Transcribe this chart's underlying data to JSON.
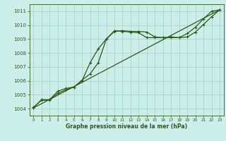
{
  "xlabel": "Graphe pression niveau de la mer (hPa)",
  "ylim": [
    1003.5,
    1011.5
  ],
  "xlim": [
    -0.5,
    23.5
  ],
  "yticks": [
    1004,
    1005,
    1006,
    1007,
    1008,
    1009,
    1010,
    1011
  ],
  "xticks": [
    0,
    1,
    2,
    3,
    4,
    5,
    6,
    7,
    8,
    9,
    10,
    11,
    12,
    13,
    14,
    15,
    16,
    17,
    18,
    19,
    20,
    21,
    22,
    23
  ],
  "bg_color": "#cceee8",
  "grid_color": "#aad4ce",
  "line_color": "#2d5a1b",
  "line1_x": [
    0,
    1,
    2,
    3,
    4,
    5,
    6,
    7,
    8,
    9,
    10,
    11,
    12,
    13,
    14,
    15,
    16,
    17,
    18,
    19,
    20,
    21,
    22,
    23
  ],
  "line1_y": [
    1004.1,
    1004.6,
    1004.6,
    1005.1,
    1005.35,
    1005.55,
    1006.0,
    1007.3,
    1008.3,
    1009.0,
    1009.6,
    1009.55,
    1009.5,
    1009.45,
    1009.1,
    1009.1,
    1009.1,
    1009.1,
    1009.1,
    1009.4,
    1009.85,
    1010.45,
    1011.0,
    1011.1
  ],
  "line2_x": [
    0,
    1,
    2,
    3,
    4,
    5,
    6,
    7,
    8,
    9,
    10,
    11,
    12,
    13,
    14,
    15,
    16,
    17,
    18,
    19,
    20,
    21,
    22,
    23
  ],
  "line2_y": [
    1004.05,
    1004.65,
    1004.65,
    1005.25,
    1005.45,
    1005.55,
    1006.05,
    1006.5,
    1007.3,
    1009.0,
    1009.55,
    1009.6,
    1009.55,
    1009.55,
    1009.5,
    1009.15,
    1009.1,
    1009.15,
    1009.1,
    1009.15,
    1009.5,
    1010.05,
    1010.6,
    1011.1
  ],
  "line3_x": [
    0,
    23
  ],
  "line3_y": [
    1004.05,
    1011.1
  ],
  "markersize": 2.5,
  "linewidth": 0.9
}
